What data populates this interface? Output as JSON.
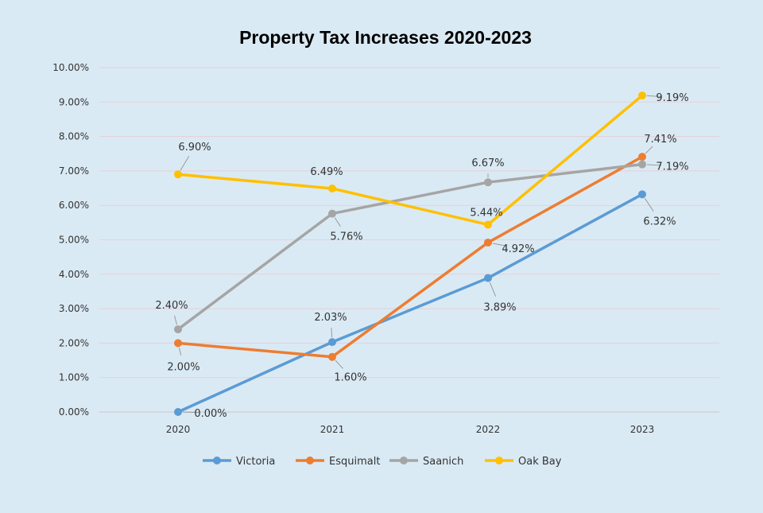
{
  "chart_data": {
    "type": "line",
    "title": "Property Tax Increases 2020-2023",
    "categories": [
      "2020",
      "2021",
      "2022",
      "2023"
    ],
    "ylim": [
      0,
      10
    ],
    "yticks": [
      "0.00%",
      "1.00%",
      "2.00%",
      "3.00%",
      "4.00%",
      "5.00%",
      "6.00%",
      "7.00%",
      "8.00%",
      "9.00%",
      "10.00%"
    ],
    "grid": true,
    "legend": "bottom",
    "series": [
      {
        "name": "Victoria",
        "color": "#5b9bd5",
        "values": [
          0.0,
          2.03,
          3.89,
          6.32
        ],
        "labels": [
          "0.00%",
          "2.03%",
          "3.89%",
          "6.32%"
        ]
      },
      {
        "name": "Esquimalt",
        "color": "#ed7d31",
        "values": [
          2.0,
          1.6,
          4.92,
          7.41
        ],
        "labels": [
          "2.00%",
          "1.60%",
          "4.92%",
          "7.41%"
        ]
      },
      {
        "name": "Saanich",
        "color": "#a5a5a5",
        "values": [
          2.4,
          5.76,
          6.67,
          7.19
        ],
        "labels": [
          "2.40%",
          "5.76%",
          "6.67%",
          "7.19%"
        ]
      },
      {
        "name": "Oak Bay",
        "color": "#ffc000",
        "values": [
          6.9,
          6.49,
          5.44,
          9.19
        ],
        "labels": [
          "6.90%",
          "6.49%",
          "5.44%",
          "9.19%"
        ]
      }
    ]
  }
}
